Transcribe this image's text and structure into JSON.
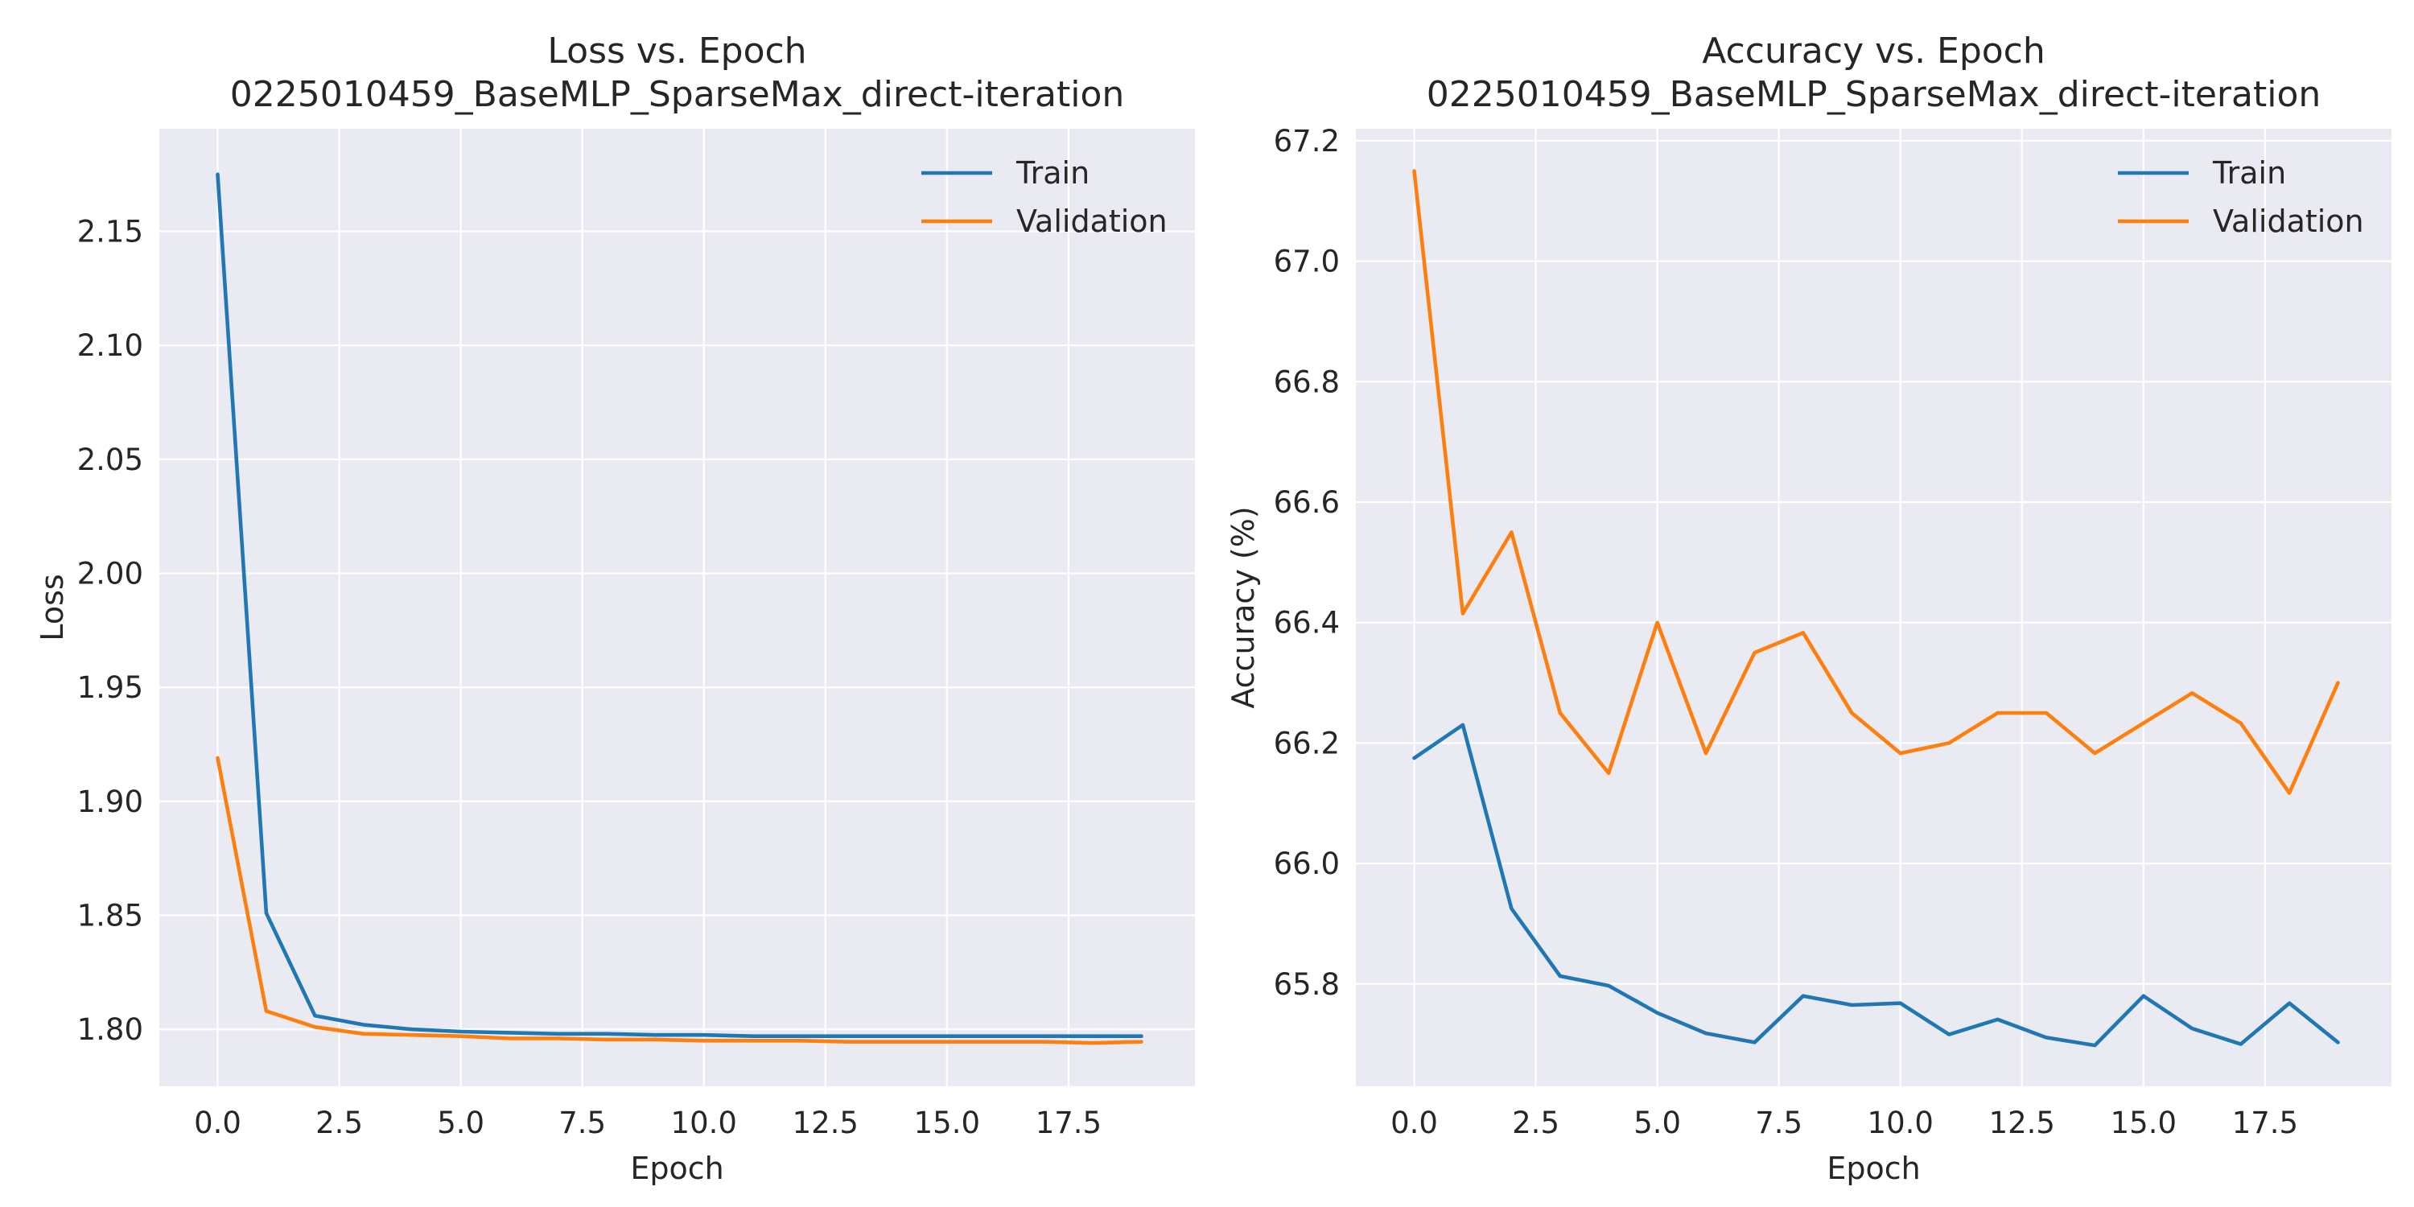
{
  "colors": {
    "train": "#1f77b4",
    "validation": "#ff7f0e",
    "plot_background": "#eaeaf2",
    "grid": "#ffffff"
  },
  "chart_data": [
    {
      "type": "line",
      "title": "Loss vs. Epoch\n0225010459_BaseMLP_SparseMax_direct-iteration",
      "xlabel": "Epoch",
      "ylabel": "Loss",
      "xlim": [
        -1.2,
        20.1
      ],
      "ylim": [
        1.775,
        2.195
      ],
      "x_ticks": [
        0.0,
        2.5,
        5.0,
        7.5,
        10.0,
        12.5,
        15.0,
        17.5
      ],
      "x_tick_labels": [
        "0.0",
        "2.5",
        "5.0",
        "7.5",
        "10.0",
        "12.5",
        "15.0",
        "17.5"
      ],
      "y_ticks": [
        1.8,
        1.85,
        1.9,
        1.95,
        2.0,
        2.05,
        2.1,
        2.15
      ],
      "y_tick_labels": [
        "1.80",
        "1.85",
        "1.90",
        "1.95",
        "2.00",
        "2.05",
        "2.10",
        "2.15"
      ],
      "grid": true,
      "legend_position": "top-right",
      "x": [
        0,
        1,
        2,
        3,
        4,
        5,
        6,
        7,
        8,
        9,
        10,
        11,
        12,
        13,
        14,
        15,
        16,
        17,
        18,
        19
      ],
      "series": [
        {
          "name": "Train",
          "color": "#1f77b4",
          "values": [
            2.175,
            1.851,
            1.806,
            1.802,
            1.8,
            1.799,
            1.7985,
            1.798,
            1.798,
            1.7975,
            1.7975,
            1.797,
            1.797,
            1.797,
            1.797,
            1.797,
            1.797,
            1.797,
            1.797,
            1.797
          ]
        },
        {
          "name": "Validation",
          "color": "#ff7f0e",
          "values": [
            1.919,
            1.808,
            1.801,
            1.798,
            1.7975,
            1.797,
            1.796,
            1.796,
            1.7955,
            1.7955,
            1.795,
            1.795,
            1.795,
            1.7945,
            1.7945,
            1.7945,
            1.7945,
            1.7945,
            1.794,
            1.7945
          ]
        }
      ]
    },
    {
      "type": "line",
      "title": "Accuracy vs. Epoch\n0225010459_BaseMLP_SparseMax_direct-iteration",
      "xlabel": "Epoch",
      "ylabel": "Accuracy (%)",
      "xlim": [
        -1.2,
        20.1
      ],
      "ylim": [
        65.63,
        67.22
      ],
      "x_ticks": [
        0.0,
        2.5,
        5.0,
        7.5,
        10.0,
        12.5,
        15.0,
        17.5
      ],
      "x_tick_labels": [
        "0.0",
        "2.5",
        "5.0",
        "7.5",
        "10.0",
        "12.5",
        "15.0",
        "17.5"
      ],
      "y_ticks": [
        65.8,
        66.0,
        66.2,
        66.4,
        66.6,
        66.8,
        67.0,
        67.2
      ],
      "y_tick_labels": [
        "65.8",
        "66.0",
        "66.2",
        "66.4",
        "66.6",
        "66.8",
        "67.0",
        "67.2"
      ],
      "grid": true,
      "legend_position": "top-right",
      "x": [
        0,
        1,
        2,
        3,
        4,
        5,
        6,
        7,
        8,
        9,
        10,
        11,
        12,
        13,
        14,
        15,
        16,
        17,
        18,
        19
      ],
      "series": [
        {
          "name": "Train",
          "color": "#1f77b4",
          "values": [
            66.175,
            66.23,
            65.925,
            65.813,
            65.797,
            65.752,
            65.718,
            65.703,
            65.78,
            65.765,
            65.768,
            65.716,
            65.741,
            65.711,
            65.698,
            65.78,
            65.726,
            65.7,
            65.768,
            65.703
          ]
        },
        {
          "name": "Validation",
          "color": "#ff7f0e",
          "values": [
            67.15,
            66.415,
            66.55,
            66.25,
            66.15,
            66.4,
            66.183,
            66.35,
            66.383,
            66.25,
            66.183,
            66.2,
            66.25,
            66.25,
            66.183,
            66.233,
            66.283,
            66.233,
            66.117,
            66.3
          ]
        }
      ]
    }
  ]
}
